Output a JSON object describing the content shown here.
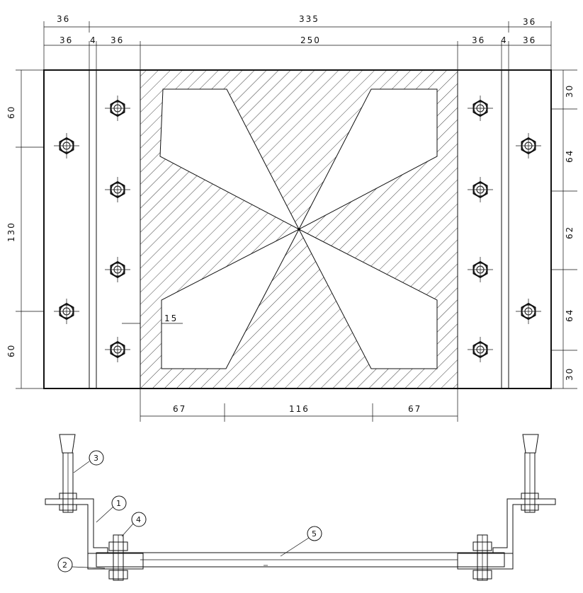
{
  "top_dims": {
    "row1_left": "36",
    "row1_mid": "335",
    "row1_right": "36",
    "row2": [
      "36",
      "4",
      "36",
      "250",
      "36",
      "4",
      "36"
    ]
  },
  "left_dims": [
    "60",
    "130",
    "60"
  ],
  "right_dims": [
    "30",
    "64",
    "62",
    "64",
    "30"
  ],
  "bottom_dims": [
    "67",
    "116",
    "67"
  ],
  "inner_dim": "15",
  "callouts": [
    "1",
    "2",
    "3",
    "4",
    "5"
  ]
}
